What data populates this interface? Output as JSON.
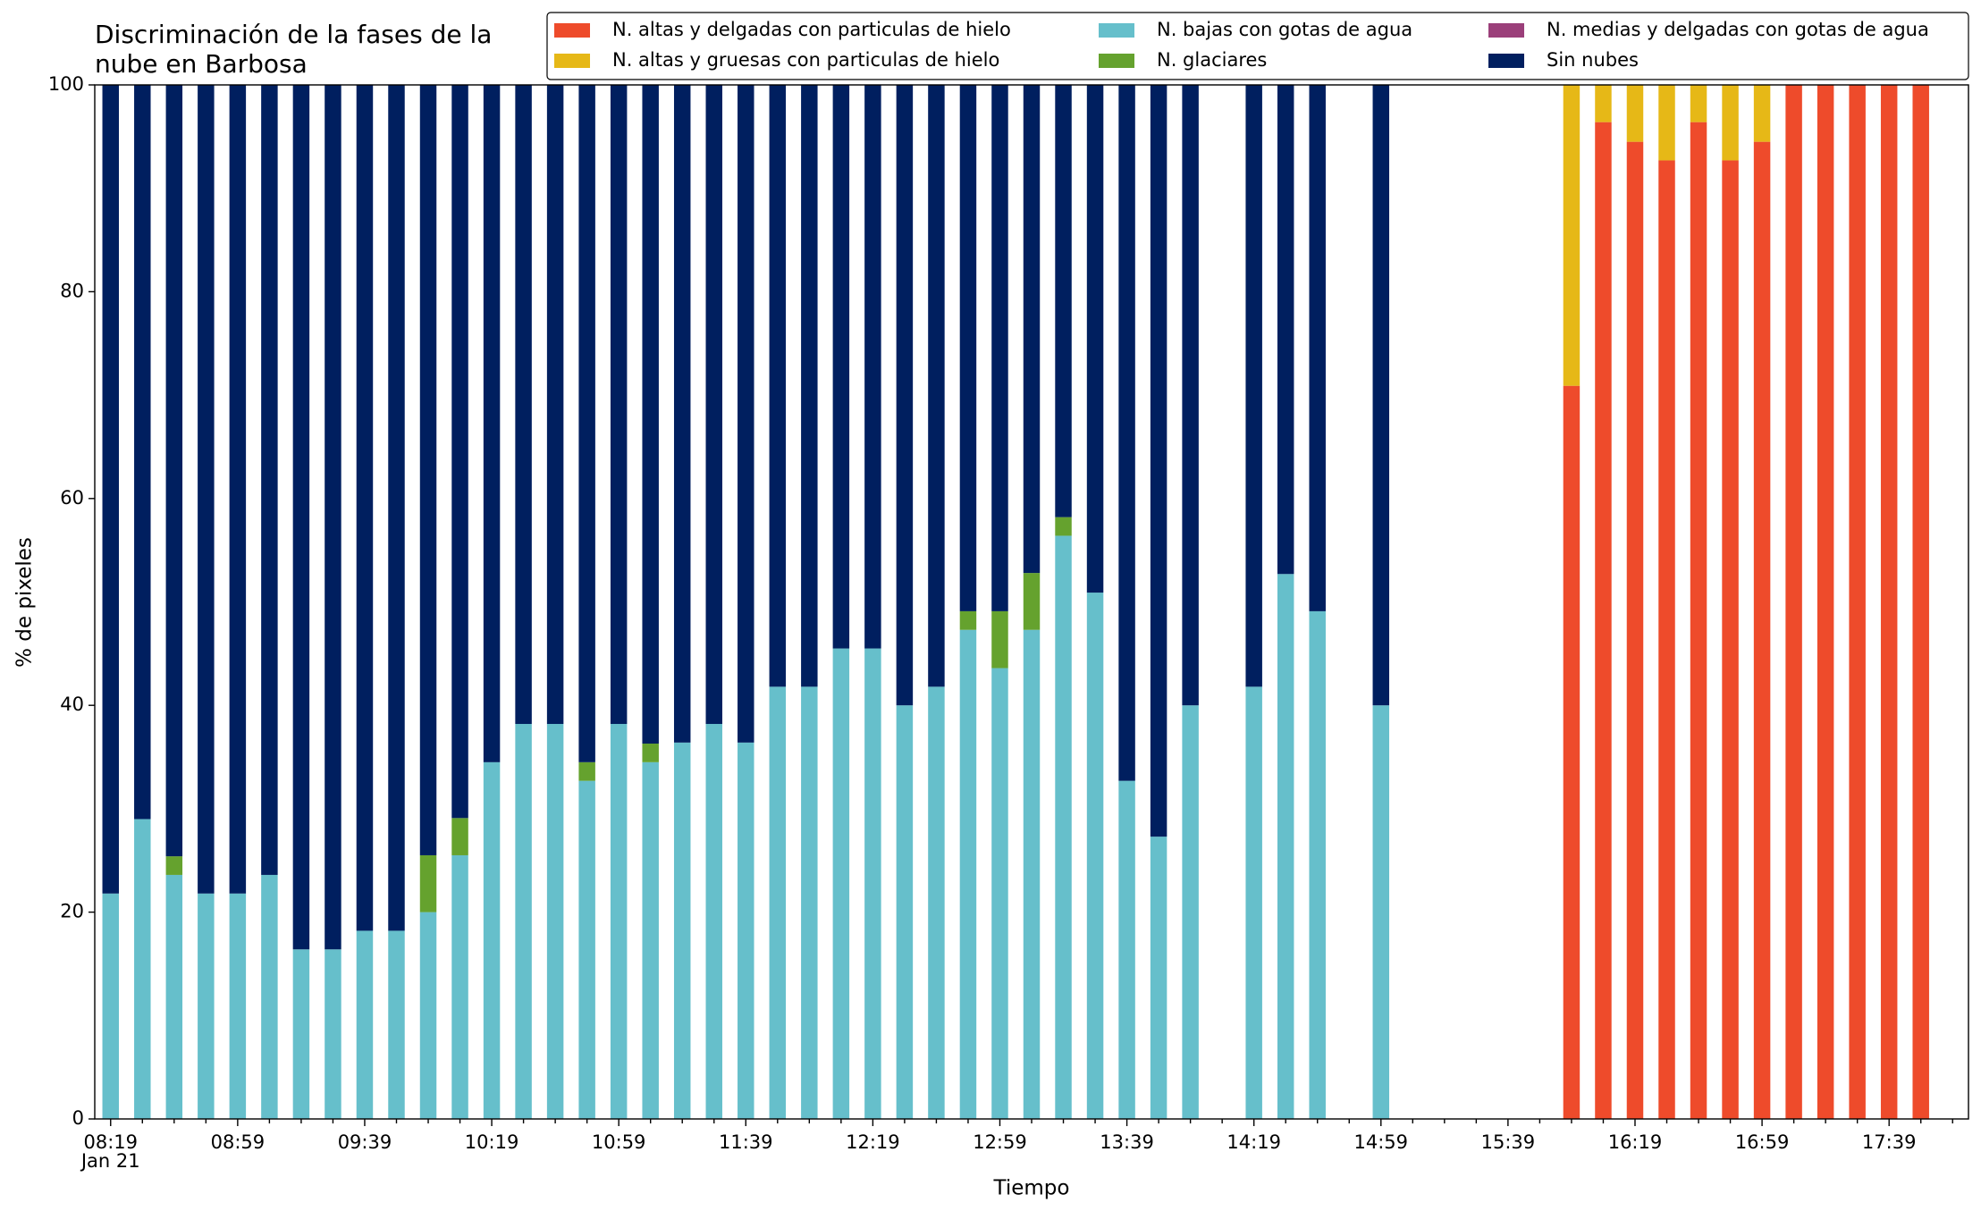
{
  "chart_data": {
    "type": "stacked_bar",
    "title": [
      "Discriminación de la fases de la",
      "nube en Barbosa"
    ],
    "x_label": "Tiempo",
    "y_label": "% de pixeles",
    "date_label": "Jan 21",
    "categories": [
      "08:19",
      null,
      null,
      null,
      "08:59",
      null,
      null,
      null,
      "09:39",
      null,
      null,
      null,
      "10:19",
      null,
      null,
      null,
      "10:59",
      null,
      null,
      null,
      "11:39",
      null,
      null,
      null,
      "12:19",
      null,
      null,
      null,
      "12:59",
      null,
      null,
      null,
      "13:39",
      null,
      null,
      null,
      "14:19",
      null,
      null,
      null,
      "14:59",
      null,
      null,
      null,
      "15:39",
      null,
      null,
      null,
      "16:19",
      null,
      null,
      null,
      "16:59",
      null,
      null,
      null,
      "17:39",
      null,
      null
    ],
    "series": [
      {
        "name": "N. altas y delgadas con particulas de hielo",
        "color": "#ee4b2b",
        "values": [
          0,
          0,
          0,
          0,
          0,
          0,
          0,
          0,
          0,
          0,
          0,
          0,
          0,
          0,
          0,
          0,
          0,
          0,
          0,
          0,
          0,
          0,
          0,
          0,
          0,
          0,
          0,
          0,
          0,
          0,
          0,
          0,
          0,
          0,
          0,
          null,
          0,
          0,
          0,
          null,
          0,
          null,
          null,
          null,
          null,
          null,
          70.9,
          96.4,
          94.5,
          92.7,
          96.4,
          92.7,
          94.5,
          100,
          100,
          100,
          100,
          100,
          null
        ]
      },
      {
        "name": "N. altas y gruesas con particulas de hielo",
        "color": "#e6b817",
        "values": [
          0,
          0,
          0,
          0,
          0,
          0,
          0,
          0,
          0,
          0,
          0,
          0,
          0,
          0,
          0,
          0,
          0,
          0,
          0,
          0,
          0,
          0,
          0,
          0,
          0,
          0,
          0,
          0,
          0,
          0,
          0,
          0,
          0,
          0,
          0,
          null,
          0,
          0,
          0,
          null,
          0,
          null,
          null,
          null,
          null,
          null,
          29.1,
          3.6,
          5.5,
          7.3,
          3.6,
          7.3,
          5.5,
          0,
          0,
          0,
          0,
          0,
          null
        ]
      },
      {
        "name": "N. bajas con gotas de agua",
        "color": "#66bfcb",
        "values": [
          21.8,
          29,
          23.6,
          21.8,
          21.8,
          23.6,
          16.4,
          16.4,
          18.2,
          18.2,
          20,
          25.5,
          34.5,
          38.2,
          38.2,
          32.7,
          38.2,
          34.5,
          36.4,
          38.2,
          36.4,
          41.8,
          41.8,
          45.5,
          45.5,
          40,
          41.8,
          47.3,
          43.6,
          47.3,
          56.4,
          50.9,
          32.7,
          27.3,
          40,
          null,
          41.8,
          52.7,
          49.1,
          null,
          40,
          null,
          null,
          null,
          null,
          null,
          0,
          0,
          0,
          0,
          0,
          0,
          0,
          0,
          0,
          0,
          0,
          0,
          null
        ]
      },
      {
        "name": "N. glaciares",
        "color": "#65a22e",
        "values": [
          0,
          0,
          1.8,
          0,
          0,
          0,
          0,
          0,
          0,
          0,
          5.5,
          3.6,
          0,
          0,
          0,
          1.8,
          0,
          1.8,
          0,
          0,
          0,
          0,
          0,
          0,
          0,
          0,
          0,
          1.8,
          5.5,
          5.5,
          1.8,
          0,
          0,
          0,
          0,
          null,
          0,
          0,
          0,
          null,
          0,
          null,
          null,
          null,
          null,
          null,
          0,
          0,
          0,
          0,
          0,
          0,
          0,
          0,
          0,
          0,
          0,
          0,
          null
        ]
      },
      {
        "name": "N. medias y delgadas con gotas de agua",
        "color": "#9b3f7a",
        "values": [
          0,
          0,
          0,
          0,
          0,
          0,
          0,
          0,
          0,
          0,
          0,
          0,
          0,
          0,
          0,
          0,
          0,
          0,
          0,
          0,
          0,
          0,
          0,
          0,
          0,
          0,
          0,
          0,
          0,
          0,
          0,
          0,
          0,
          0,
          0,
          null,
          0,
          0,
          0,
          null,
          0,
          null,
          null,
          null,
          null,
          null,
          0,
          0,
          0,
          0,
          0,
          0,
          0,
          0,
          0,
          0,
          0,
          0,
          null
        ]
      },
      {
        "name": "Sin nubes",
        "color": "#001f5f",
        "values": [
          78.2,
          71,
          74.6,
          78.2,
          78.2,
          76.4,
          83.6,
          83.6,
          81.8,
          81.8,
          74.5,
          70.9,
          65.5,
          61.8,
          61.8,
          65.5,
          61.8,
          63.7,
          63.6,
          61.8,
          63.6,
          58.2,
          58.2,
          54.5,
          54.5,
          60,
          58.2,
          50.9,
          50.9,
          47.2,
          41.8,
          49.1,
          67.3,
          72.7,
          60,
          null,
          58.2,
          47.3,
          50.9,
          null,
          60,
          null,
          null,
          null,
          null,
          null,
          0,
          0,
          0,
          0,
          0,
          0,
          0,
          0,
          0,
          0,
          0,
          0,
          null
        ]
      }
    ],
    "ylim": [
      0,
      100
    ],
    "yticks": [
      0,
      20,
      40,
      60,
      80,
      100
    ],
    "legend": "top right",
    "legend_columns": 3
  }
}
